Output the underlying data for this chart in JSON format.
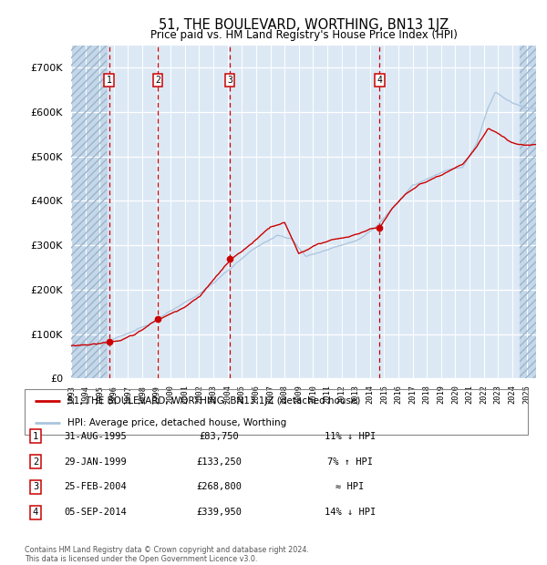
{
  "title": "51, THE BOULEVARD, WORTHING, BN13 1JZ",
  "subtitle": "Price paid vs. HM Land Registry's House Price Index (HPI)",
  "ylim": [
    0,
    750000
  ],
  "yticks": [
    0,
    100000,
    200000,
    300000,
    400000,
    500000,
    600000,
    700000
  ],
  "ytick_labels": [
    "£0",
    "£100K",
    "£200K",
    "£300K",
    "£400K",
    "£500K",
    "£600K",
    "£700K"
  ],
  "xlim_start": 1993.0,
  "xlim_end": 2025.67,
  "sale_dates": [
    1995.667,
    1999.083,
    2004.154,
    2014.676
  ],
  "sale_prices": [
    83750,
    133250,
    268800,
    339950
  ],
  "sale_labels": [
    "1",
    "2",
    "3",
    "4"
  ],
  "sale_label_notes": [
    "11% ↓ HPI",
    "7% ↑ HPI",
    "≈ HPI",
    "14% ↓ HPI"
  ],
  "sale_date_strings": [
    "31-AUG-1995",
    "29-JAN-1999",
    "25-FEB-2004",
    "05-SEP-2014"
  ],
  "sale_price_strings": [
    "£83,750",
    "£133,250",
    "£268,800",
    "£339,950"
  ],
  "dashed_line_color": "#cc0000",
  "sale_dot_color": "#cc0000",
  "hpi_line_color": "#aac4dd",
  "price_line_color": "#cc0000",
  "background_color": "#dce9f5",
  "grid_color": "#ffffff",
  "legend_label_red": "51, THE BOULEVARD, WORTHING, BN13 1JZ (detached house)",
  "legend_label_blue": "HPI: Average price, detached house, Worthing",
  "footer_text": "Contains HM Land Registry data © Crown copyright and database right 2024.\nThis data is licensed under the Open Government Licence v3.0.",
  "hatch_end": 1995.5,
  "hatch_start_right": 2024.5
}
